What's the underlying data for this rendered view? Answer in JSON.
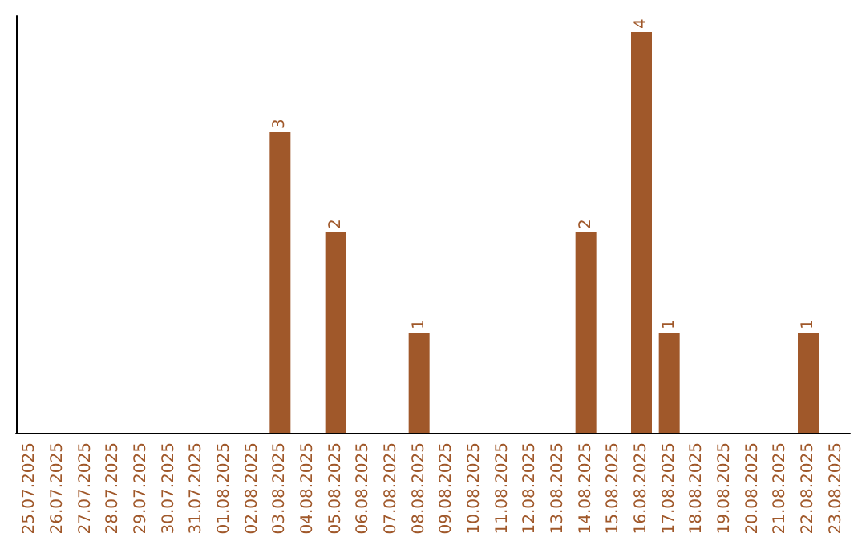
{
  "chart_data": {
    "type": "bar",
    "categories": [
      "25.07.2025",
      "26.07.2025",
      "27.07.2025",
      "28.07.2025",
      "29.07.2025",
      "30.07.2025",
      "31.07.2025",
      "01.08.2025",
      "02.08.2025",
      "03.08.2025",
      "04.08.2025",
      "05.08.2025",
      "06.08.2025",
      "07.08.2025",
      "08.08.2025",
      "09.08.2025",
      "10.08.2025",
      "11.08.2025",
      "12.08.2025",
      "13.08.2025",
      "14.08.2025",
      "15.08.2025",
      "16.08.2025",
      "17.08.2025",
      "18.08.2025",
      "19.08.2025",
      "20.08.2025",
      "21.08.2025",
      "22.08.2025",
      "23.08.2025"
    ],
    "values": [
      0,
      0,
      0,
      0,
      0,
      0,
      0,
      0,
      0,
      3,
      0,
      2,
      0,
      0,
      1,
      0,
      0,
      0,
      0,
      0,
      2,
      0,
      4,
      1,
      0,
      0,
      0,
      0,
      1,
      0
    ],
    "value_labels": [
      null,
      null,
      null,
      null,
      null,
      null,
      null,
      null,
      null,
      "3",
      null,
      "2",
      null,
      null,
      "1",
      null,
      null,
      null,
      null,
      null,
      "2",
      null,
      "4",
      "1",
      null,
      null,
      null,
      null,
      "1",
      null
    ],
    "color": "#a0582a"
  }
}
